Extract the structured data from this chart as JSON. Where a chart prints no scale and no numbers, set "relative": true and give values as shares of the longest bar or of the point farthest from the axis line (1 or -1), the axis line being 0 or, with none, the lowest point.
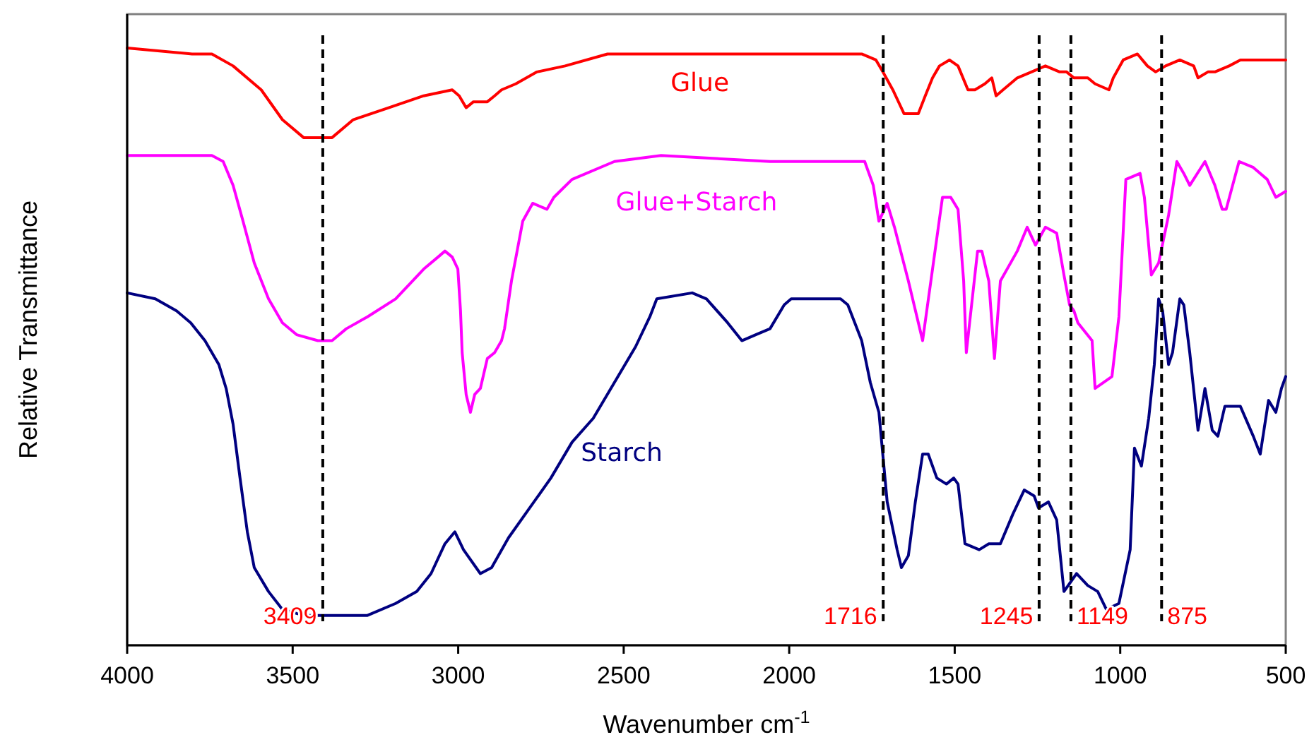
{
  "chart_data": {
    "type": "line",
    "relative": true,
    "xlabel": "Wavenumber cm$^{-1}$",
    "ylabel": "Relative Transmittance",
    "xlim": [
      4000,
      500
    ],
    "xticks": [
      4000,
      3500,
      3000,
      2500,
      2000,
      1500,
      1000,
      500
    ],
    "grid": false,
    "marker": "none",
    "line_style": "solid",
    "series": [
      {
        "name": "Glue",
        "color": "#ff0000",
        "x": [
          4000,
          3804,
          3744,
          3680,
          3595,
          3531,
          3467,
          3424,
          3381,
          3317,
          3210,
          3104,
          3018,
          2997,
          2976,
          2954,
          2912,
          2890,
          2869,
          2826,
          2762,
          2677,
          2549,
          2421,
          2250,
          1909,
          1781,
          1738,
          1717,
          1687,
          1653,
          1632,
          1610,
          1589,
          1567,
          1546,
          1516,
          1490,
          1460,
          1439,
          1409,
          1388,
          1375,
          1354,
          1311,
          1268,
          1226,
          1183,
          1162,
          1140,
          1098,
          1076,
          1034,
          1021,
          991,
          948,
          918,
          893,
          863,
          820,
          778,
          765,
          735,
          714,
          671,
          637,
          586,
          543,
          500
        ],
        "values": [
          1,
          0.99,
          0.99,
          0.97,
          0.93,
          0.88,
          0.85,
          0.85,
          0.85,
          0.88,
          0.9,
          0.92,
          0.93,
          0.92,
          0.9,
          0.91,
          0.91,
          0.92,
          0.93,
          0.94,
          0.96,
          0.97,
          0.99,
          0.99,
          0.99,
          0.99,
          0.99,
          0.98,
          0.96,
          0.93,
          0.89,
          0.89,
          0.89,
          0.92,
          0.95,
          0.97,
          0.98,
          0.97,
          0.93,
          0.93,
          0.94,
          0.95,
          0.92,
          0.93,
          0.95,
          0.96,
          0.97,
          0.96,
          0.96,
          0.95,
          0.95,
          0.94,
          0.93,
          0.95,
          0.98,
          0.99,
          0.97,
          0.96,
          0.97,
          0.98,
          0.97,
          0.95,
          0.96,
          0.96,
          0.97,
          0.98,
          0.98,
          0.98,
          0.98
        ]
      },
      {
        "name": "Glue+Starch",
        "color": "#ff00ff",
        "x": [
          4000,
          3744,
          3710,
          3680,
          3650,
          3616,
          3573,
          3531,
          3488,
          3424,
          3381,
          3338,
          3274,
          3189,
          3104,
          3061,
          3040,
          3018,
          3001,
          2993,
          2988,
          2976,
          2963,
          2950,
          2933,
          2912,
          2890,
          2869,
          2860,
          2839,
          2805,
          2775,
          2732,
          2711,
          2656,
          2528,
          2387,
          2058,
          1772,
          1746,
          1729,
          1704,
          1682,
          1640,
          1597,
          1567,
          1537,
          1512,
          1490,
          1473,
          1465,
          1431,
          1418,
          1397,
          1380,
          1362,
          1311,
          1281,
          1256,
          1226,
          1192,
          1170,
          1153,
          1140,
          1128,
          1085,
          1076,
          1025,
          1004,
          983,
          940,
          927,
          906,
          884,
          854,
          829,
          808,
          790,
          744,
          714,
          692,
          680,
          641,
          598,
          556,
          530,
          500
        ],
        "values": [
          0.82,
          0.82,
          0.81,
          0.77,
          0.71,
          0.64,
          0.58,
          0.54,
          0.52,
          0.51,
          0.51,
          0.53,
          0.55,
          0.58,
          0.63,
          0.65,
          0.66,
          0.65,
          0.63,
          0.56,
          0.49,
          0.42,
          0.39,
          0.42,
          0.43,
          0.48,
          0.49,
          0.51,
          0.53,
          0.61,
          0.71,
          0.74,
          0.73,
          0.75,
          0.78,
          0.81,
          0.82,
          0.81,
          0.81,
          0.77,
          0.71,
          0.74,
          0.7,
          0.61,
          0.51,
          0.63,
          0.75,
          0.75,
          0.73,
          0.61,
          0.49,
          0.66,
          0.66,
          0.61,
          0.48,
          0.61,
          0.66,
          0.7,
          0.67,
          0.7,
          0.69,
          0.62,
          0.57,
          0.56,
          0.54,
          0.51,
          0.43,
          0.45,
          0.55,
          0.78,
          0.79,
          0.75,
          0.62,
          0.64,
          0.72,
          0.81,
          0.79,
          0.77,
          0.81,
          0.77,
          0.73,
          0.73,
          0.81,
          0.8,
          0.78,
          0.75,
          0.76
        ]
      },
      {
        "name": "Starch",
        "color": "#000080",
        "x": [
          4000,
          3915,
          3851,
          3808,
          3765,
          3723,
          3701,
          3680,
          3659,
          3637,
          3616,
          3573,
          3531,
          3467,
          3360,
          3274,
          3189,
          3125,
          3082,
          3040,
          3010,
          2984,
          2933,
          2899,
          2848,
          2784,
          2720,
          2656,
          2592,
          2528,
          2464,
          2421,
          2400,
          2293,
          2250,
          2186,
          2143,
          2101,
          2058,
          2015,
          1994,
          1845,
          1823,
          1781,
          1755,
          1729,
          1704,
          1674,
          1661,
          1640,
          1619,
          1597,
          1580,
          1554,
          1525,
          1503,
          1490,
          1469,
          1426,
          1397,
          1362,
          1324,
          1290,
          1260,
          1247,
          1217,
          1192,
          1170,
          1132,
          1098,
          1068,
          1042,
          1004,
          970,
          957,
          936,
          914,
          897,
          884,
          872,
          854,
          842,
          820,
          808,
          790,
          765,
          744,
          722,
          705,
          684,
          637,
          598,
          577,
          552,
          530,
          513,
          500
        ],
        "values": [
          0.59,
          0.58,
          0.56,
          0.54,
          0.51,
          0.47,
          0.43,
          0.37,
          0.28,
          0.19,
          0.13,
          0.09,
          0.06,
          0.05,
          0.05,
          0.05,
          0.07,
          0.09,
          0.12,
          0.17,
          0.19,
          0.16,
          0.12,
          0.13,
          0.18,
          0.23,
          0.28,
          0.34,
          0.38,
          0.44,
          0.5,
          0.55,
          0.58,
          0.59,
          0.58,
          0.54,
          0.51,
          0.52,
          0.53,
          0.57,
          0.58,
          0.58,
          0.57,
          0.51,
          0.44,
          0.39,
          0.24,
          0.16,
          0.13,
          0.15,
          0.24,
          0.32,
          0.32,
          0.28,
          0.27,
          0.28,
          0.27,
          0.17,
          0.16,
          0.17,
          0.17,
          0.22,
          0.26,
          0.25,
          0.23,
          0.24,
          0.21,
          0.09,
          0.12,
          0.1,
          0.09,
          0.06,
          0.07,
          0.16,
          0.33,
          0.3,
          0.38,
          0.47,
          0.58,
          0.56,
          0.47,
          0.49,
          0.58,
          0.57,
          0.49,
          0.36,
          0.43,
          0.36,
          0.35,
          0.4,
          0.4,
          0.35,
          0.32,
          0.41,
          0.39,
          0.43,
          0.45
        ]
      }
    ],
    "ref_lines": [
      {
        "axis": "x",
        "value": 3409,
        "label": "3409",
        "color": "#000000",
        "line_style": "dashed"
      },
      {
        "axis": "x",
        "value": 1716,
        "label": "1716",
        "color": "#000000",
        "line_style": "dashed"
      },
      {
        "axis": "x",
        "value": 1245,
        "label": "1245",
        "color": "#000000",
        "line_style": "dashed"
      },
      {
        "axis": "x",
        "value": 1149,
        "label": "1149",
        "color": "#000000",
        "line_style": "dashed"
      },
      {
        "axis": "x",
        "value": 875,
        "label": "875",
        "color": "#000000",
        "line_style": "dashed"
      }
    ]
  }
}
